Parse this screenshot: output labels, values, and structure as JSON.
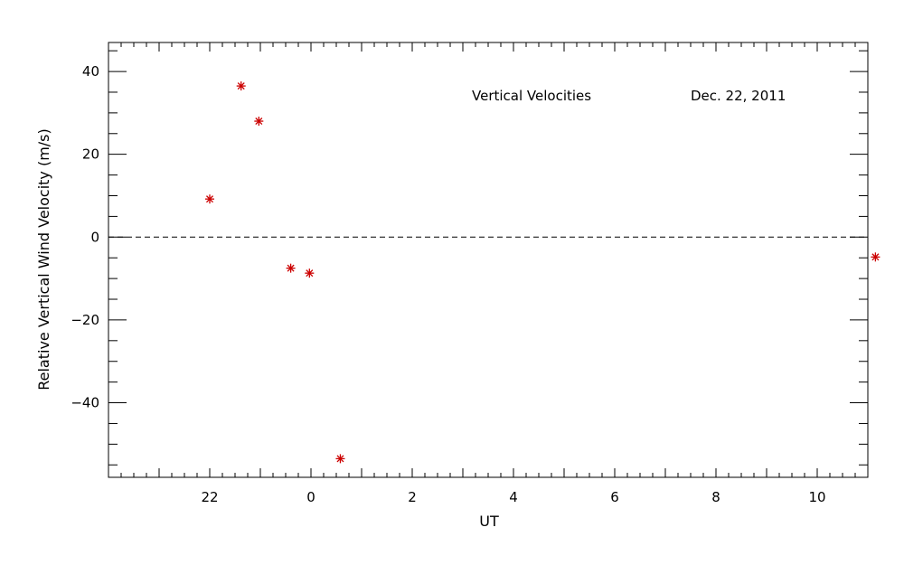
{
  "chart_data": {
    "type": "scatter",
    "title": "",
    "xlabel": "UT",
    "ylabel": "Relative Vertical Wind Velocity (m/s)",
    "annotations": [
      "Vertical Velocities",
      "Dec. 22, 2011"
    ],
    "xlim": [
      -2.5,
      12.5
    ],
    "ylim": [
      -58,
      47
    ],
    "x_ticks": [
      {
        "value": -0.5,
        "label": "22"
      },
      {
        "value": 1.5,
        "label": "0"
      },
      {
        "value": 3.5,
        "label": "2"
      },
      {
        "value": 5.5,
        "label": "4"
      },
      {
        "value": 7.5,
        "label": "6"
      },
      {
        "value": 9.5,
        "label": "8"
      },
      {
        "value": 11.5,
        "label": "10"
      }
    ],
    "y_ticks": [
      {
        "value": 40,
        "label": "40"
      },
      {
        "value": 20,
        "label": "20"
      },
      {
        "value": 0,
        "label": "0"
      },
      {
        "value": -20,
        "label": "−20"
      },
      {
        "value": -40,
        "label": "−40"
      }
    ],
    "reference_line": {
      "y": 0,
      "style": "dashed"
    },
    "grid": false,
    "marker": "asterisk",
    "marker_color": "#cc0000",
    "series": [
      {
        "points": [
          {
            "x": -0.5,
            "y": 9.2
          },
          {
            "x": 0.12,
            "y": 36.5
          },
          {
            "x": 0.47,
            "y": 28.0
          },
          {
            "x": 1.1,
            "y": -7.5
          },
          {
            "x": 1.47,
            "y": -8.7
          },
          {
            "x": 2.08,
            "y": -53.5
          },
          {
            "x": 12.65,
            "y": -4.8
          }
        ]
      }
    ]
  }
}
